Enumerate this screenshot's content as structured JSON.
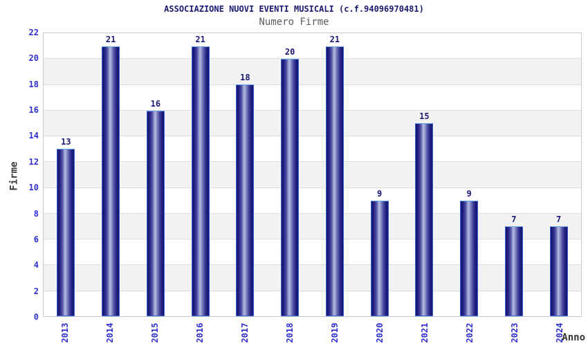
{
  "chart_data": {
    "type": "bar",
    "title": "ASSOCIAZIONE NUOVI EVENTI MUSICALI (c.f.94096970481)",
    "subtitle": "Numero Firme",
    "xlabel": "Anno",
    "ylabel": "Firme",
    "categories": [
      "2013",
      "2014",
      "2015",
      "2016",
      "2017",
      "2018",
      "2019",
      "2020",
      "2021",
      "2022",
      "2023",
      "2024"
    ],
    "values": [
      13,
      21,
      16,
      21,
      18,
      20,
      21,
      9,
      15,
      9,
      7,
      7
    ],
    "ylim": [
      0,
      22
    ],
    "ytick_step": 2,
    "yticks": [
      0,
      2,
      4,
      6,
      8,
      10,
      12,
      14,
      16,
      18,
      20,
      22
    ],
    "legend": "none",
    "grid": "alternating horizontal bands with gridlines every 2 units",
    "bar_labels_shown": true,
    "x_tick_rotation_deg": 90,
    "colors": {
      "bar_edge_dark": "#17176d",
      "bar_center_light": "#b8bee2",
      "bar_border": "#3a63d2",
      "bar_border_top": "#63a2ea",
      "tick_label_blue": "#2e2ed2",
      "value_label_navy": "#191975",
      "title_navy": "#191970",
      "subtitle_gray": "#5c5c5c",
      "band_gray": "#f2f2f2",
      "band_white": "#ffffff",
      "gridline": "#dcdcdc",
      "plot_border": "#c8c8c8",
      "background": "#ffffff"
    }
  }
}
